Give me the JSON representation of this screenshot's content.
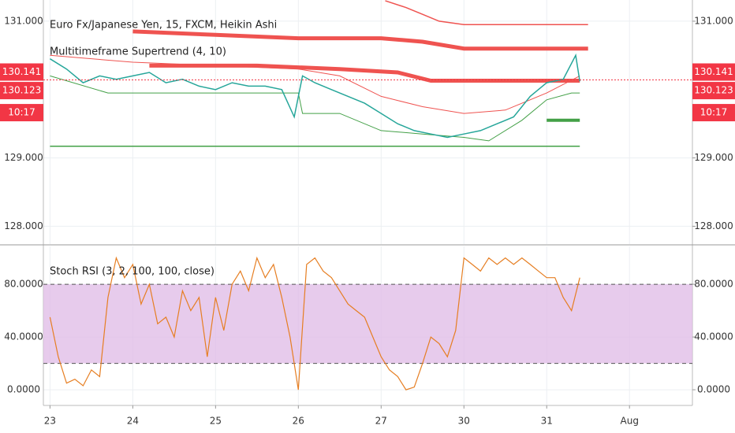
{
  "chart_data": [
    {
      "type": "line",
      "title": "Euro Fx/Japanese Yen, 15, FXCM, Heikin Ashi",
      "subtitle": "Multitimeframe Supertrend (4, 10)",
      "xlim": [
        -0.08,
        7.76
      ],
      "ylim": [
        127.74,
        131.31
      ],
      "yticks": [
        {
          "value": 128,
          "label": "128.000"
        },
        {
          "value": 129,
          "label": "129.000"
        },
        {
          "value": 131,
          "label": "131.000"
        }
      ],
      "grid": true,
      "series": [
        {
          "color": "#ef5350",
          "width": 1.5,
          "x": [
            4.05,
            4.3,
            4.5,
            4.7,
            5.0,
            6.5
          ],
          "values": [
            131.3,
            131.2,
            131.1,
            131.0,
            130.95,
            130.95
          ]
        },
        {
          "color": "#ef5350",
          "width": 5,
          "x": [
            1.0,
            2.0,
            3.0,
            4.0,
            4.5,
            5.0,
            6.5
          ],
          "values": [
            130.85,
            130.8,
            130.75,
            130.75,
            130.7,
            130.6,
            130.6
          ]
        },
        {
          "color": "#ef5350",
          "width": 5,
          "x": [
            1.2,
            2.5,
            3.5,
            4.2,
            4.6,
            6.4
          ],
          "values": [
            130.35,
            130.35,
            130.3,
            130.25,
            130.13,
            130.13
          ]
        },
        {
          "color": "#ef5350",
          "width": 1,
          "x": [
            0.0,
            1.0,
            2.0,
            3.0,
            3.5,
            4.0,
            4.5,
            5.0,
            5.5,
            6.0,
            6.4
          ],
          "values": [
            130.5,
            130.4,
            130.35,
            130.3,
            130.2,
            129.9,
            129.75,
            129.65,
            129.7,
            129.95,
            130.2
          ]
        },
        {
          "color": "#43a047",
          "width": 1.5,
          "x": [
            0.0,
            6.4
          ],
          "values": [
            129.17,
            129.17
          ]
        },
        {
          "color": "#43a047",
          "width": 1,
          "x": [
            0.0,
            0.7,
            1.5,
            2.5,
            3.0,
            3.05,
            3.5,
            4.0,
            4.5,
            5.0,
            5.3,
            5.7,
            6.0,
            6.3,
            6.4
          ],
          "values": [
            130.2,
            129.95,
            129.95,
            129.95,
            129.95,
            129.65,
            129.65,
            129.4,
            129.35,
            129.3,
            129.25,
            129.55,
            129.85,
            129.95,
            129.95
          ]
        },
        {
          "color": "#43a047",
          "width": 4,
          "x": [
            6.0,
            6.4
          ],
          "values": [
            129.55,
            129.55
          ]
        },
        {
          "color": "#26a69a",
          "width": 1.5,
          "x": [
            0.0,
            0.2,
            0.4,
            0.6,
            0.8,
            1.0,
            1.2,
            1.4,
            1.6,
            1.8,
            2.0,
            2.2,
            2.4,
            2.6,
            2.8,
            2.95,
            3.05,
            3.2,
            3.4,
            3.6,
            3.8,
            4.0,
            4.2,
            4.4,
            4.6,
            4.8,
            5.0,
            5.2,
            5.4,
            5.6,
            5.8,
            6.0,
            6.2,
            6.35,
            6.4
          ],
          "values": [
            130.45,
            130.3,
            130.1,
            130.2,
            130.15,
            130.2,
            130.25,
            130.1,
            130.15,
            130.05,
            130.0,
            130.1,
            130.05,
            130.05,
            130.0,
            129.6,
            130.2,
            130.1,
            130.0,
            129.9,
            129.8,
            129.65,
            129.5,
            129.4,
            129.35,
            129.3,
            129.35,
            129.4,
            129.5,
            129.6,
            129.9,
            130.1,
            130.15,
            130.5,
            130.12
          ]
        }
      ],
      "price_labels": [
        {
          "value": 130.141,
          "label": "130.141",
          "color": "#f23645"
        },
        {
          "value": 130.123,
          "label": "130.123",
          "color": "#f23645"
        }
      ],
      "countdown": "10:17"
    },
    {
      "type": "line",
      "title": "Stoch RSI (3, 2, 100, 100, close)",
      "xlim": [
        -0.08,
        7.76
      ],
      "ylim": [
        -11.9,
        108.7
      ],
      "yticks": [
        {
          "value": 0,
          "label": "0.0000"
        },
        {
          "value": 40,
          "label": "40.0000"
        },
        {
          "value": 80,
          "label": "80.0000"
        }
      ],
      "band": [
        20,
        80
      ],
      "grid": true,
      "xticks": [
        {
          "value": 0,
          "label": "23"
        },
        {
          "value": 1,
          "label": "24"
        },
        {
          "value": 2,
          "label": "25"
        },
        {
          "value": 3,
          "label": "26"
        },
        {
          "value": 4,
          "label": "27"
        },
        {
          "value": 5,
          "label": "30"
        },
        {
          "value": 6,
          "label": "31"
        },
        {
          "value": 7,
          "label": "Aug"
        }
      ],
      "series": [
        {
          "color": "#e67e22",
          "width": 1.2,
          "x": [
            0.0,
            0.1,
            0.2,
            0.3,
            0.4,
            0.5,
            0.6,
            0.7,
            0.8,
            0.9,
            1.0,
            1.1,
            1.2,
            1.3,
            1.4,
            1.5,
            1.6,
            1.7,
            1.8,
            1.9,
            2.0,
            2.1,
            2.2,
            2.3,
            2.4,
            2.5,
            2.6,
            2.7,
            2.8,
            2.9,
            3.0,
            3.1,
            3.2,
            3.3,
            3.4,
            3.5,
            3.6,
            3.7,
            3.8,
            3.9,
            4.0,
            4.1,
            4.2,
            4.3,
            4.4,
            4.5,
            4.6,
            4.7,
            4.8,
            4.9,
            5.0,
            5.1,
            5.2,
            5.3,
            5.4,
            5.5,
            5.6,
            5.7,
            5.8,
            5.9,
            6.0,
            6.1,
            6.2,
            6.3,
            6.4
          ],
          "values": [
            55,
            25,
            5,
            8,
            3,
            15,
            10,
            70,
            100,
            85,
            95,
            65,
            80,
            50,
            55,
            40,
            75,
            60,
            70,
            25,
            70,
            45,
            80,
            90,
            75,
            100,
            85,
            95,
            70,
            40,
            0,
            95,
            100,
            90,
            85,
            75,
            65,
            60,
            55,
            40,
            25,
            15,
            10,
            0,
            2,
            20,
            40,
            35,
            25,
            45,
            100,
            95,
            90,
            100,
            95,
            100,
            95,
            100,
            95,
            90,
            85,
            85,
            70,
            60,
            85
          ]
        }
      ]
    }
  ]
}
